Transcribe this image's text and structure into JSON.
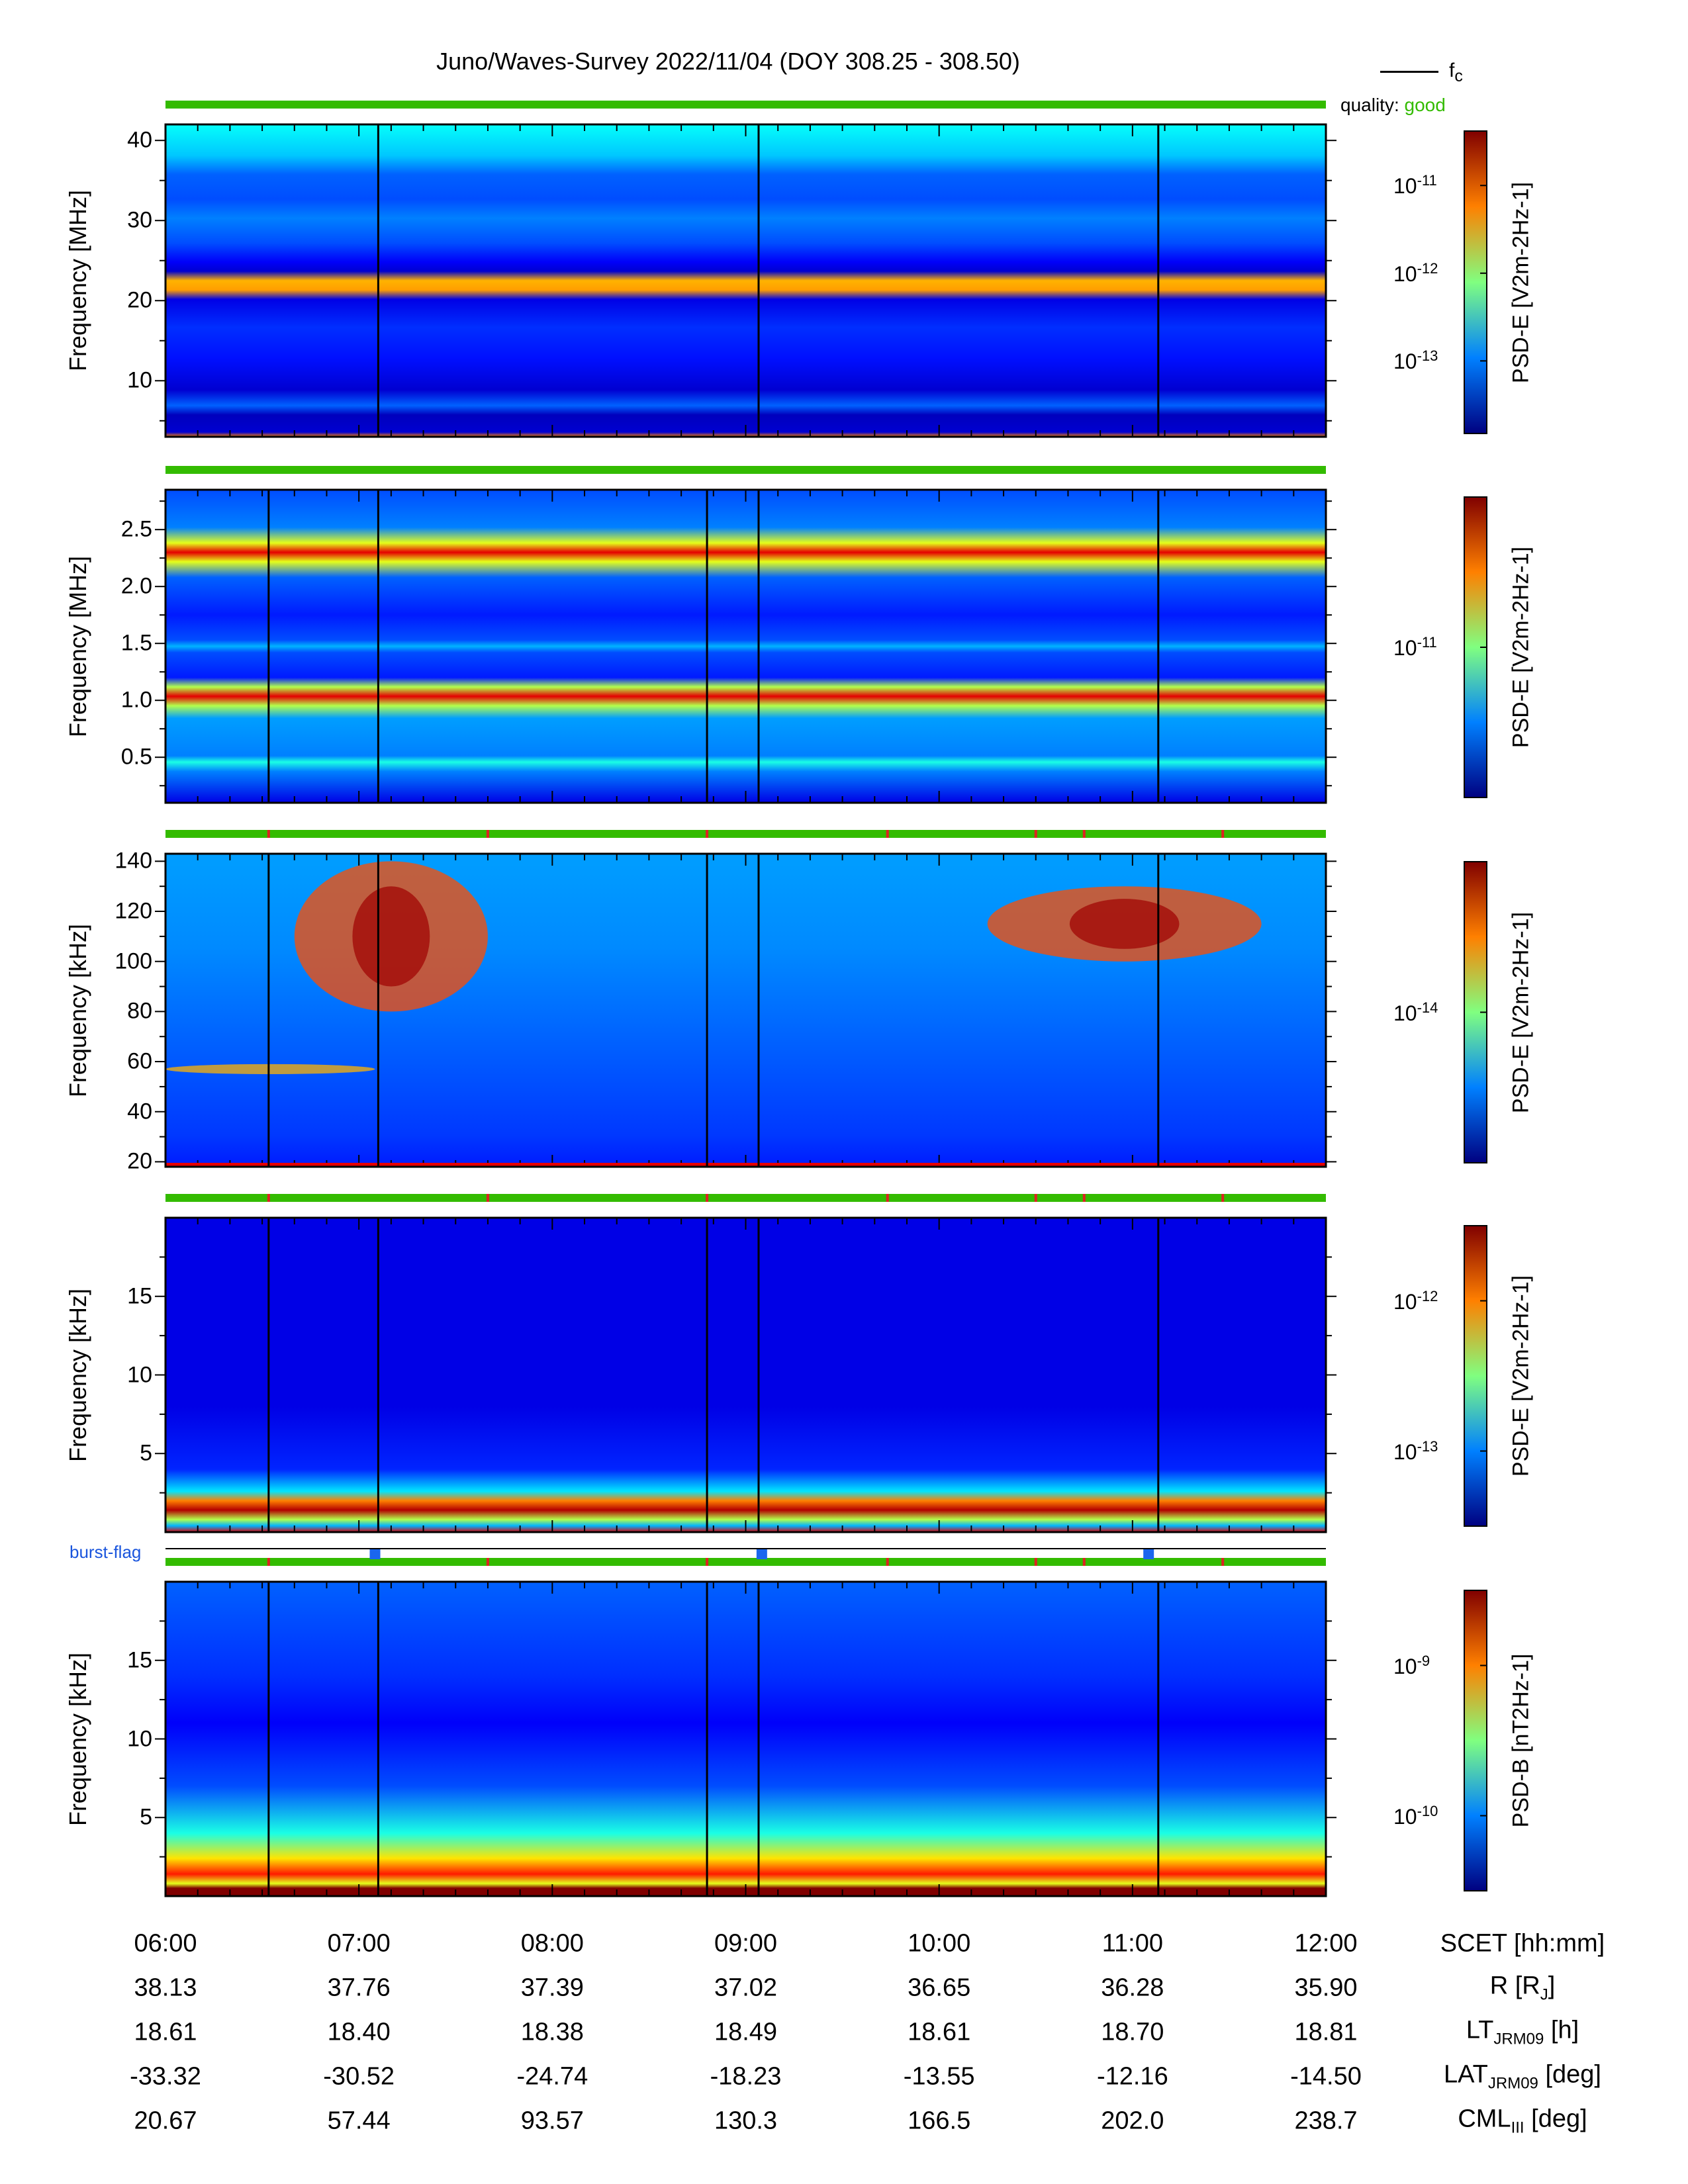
{
  "figure": {
    "title": "Juno/Waves-Survey  2022/11/04 (DOY 308.25 - 308.50)",
    "legend_fc": "f",
    "legend_fc_sub": "c",
    "quality_label": "quality:",
    "quality_value": "good",
    "burst_flag_label": "burst-flag",
    "colors": {
      "quality_good": "#33bb00",
      "quality_gap": "#dd2222",
      "burst": "#1a66ee",
      "event_line": "#000000"
    }
  },
  "chart_data": [
    {
      "type": "heatmap",
      "panel": "HFR-high",
      "ylabel": "Frequency [MHz]",
      "yticks": [
        "40",
        "30",
        "20",
        "10"
      ],
      "ylim": [
        3,
        42
      ],
      "colorbar_label": "PSD-E [V2m-2Hz-1]",
      "colorbar_ticks": [
        "10-11",
        "10-12",
        "10-13"
      ],
      "bands": [
        {
          "freq": 22,
          "level": "high"
        },
        {
          "freq": 31,
          "level": "medium"
        },
        {
          "freq": 27,
          "level": "medium"
        },
        {
          "freq": 9.5,
          "level": "medium"
        },
        {
          "freq": 3.2,
          "level": "high"
        }
      ]
    },
    {
      "type": "heatmap",
      "panel": "HFR-low",
      "ylabel": "Frequency [MHz]",
      "yticks": [
        "2.5",
        "2.0",
        "1.5",
        "1.0",
        "0.5"
      ],
      "ylim": [
        0.1,
        2.85
      ],
      "colorbar_label": "PSD-E [V2m-2Hz-1]",
      "colorbar_ticks": [
        "10-11"
      ],
      "bands": [
        {
          "freq": 2.25,
          "level": "very high"
        },
        {
          "freq": 1.13,
          "level": "very high"
        },
        {
          "freq": 1.42,
          "level": "medium"
        },
        {
          "freq": 0.55,
          "level": "medium"
        }
      ]
    },
    {
      "type": "heatmap",
      "panel": "LFR-high",
      "ylabel": "Frequency [kHz]",
      "yticks": [
        "140",
        "120",
        "100",
        "80",
        "60",
        "40",
        "20"
      ],
      "ylim": [
        18,
        143
      ],
      "colorbar_label": "PSD-E [V2m-2Hz-1]",
      "colorbar_ticks": [
        "10-14"
      ],
      "features": [
        {
          "name": "emission",
          "t_start": "06:40",
          "t_end": "07:40",
          "f_low": 80,
          "f_high": 140
        },
        {
          "name": "emission",
          "t_start": "10:15",
          "t_end": "11:40",
          "f_low": 100,
          "f_high": 130
        },
        {
          "name": "band",
          "t_start": "06:00",
          "t_end": "07:05",
          "f_low": 55,
          "f_high": 59
        }
      ]
    },
    {
      "type": "heatmap",
      "panel": "LFR-low-E",
      "ylabel": "Frequency [kHz]",
      "yticks": [
        "15",
        "10",
        "5"
      ],
      "ylim": [
        0,
        20
      ],
      "colorbar_label": "PSD-E [V2m-2Hz-1]",
      "colorbar_ticks": [
        "10-12",
        "10-13"
      ],
      "features": [
        {
          "name": "low-frequency band",
          "f_low": 0,
          "f_high": 2
        }
      ]
    },
    {
      "type": "heatmap",
      "panel": "LFR-low-B",
      "ylabel": "Frequency [kHz]",
      "yticks": [
        "15",
        "10",
        "5"
      ],
      "ylim": [
        0,
        20
      ],
      "colorbar_label": "PSD-B [nT2Hz-1]",
      "colorbar_ticks": [
        "10-9",
        "10-10"
      ],
      "features": [
        {
          "name": "low-frequency band",
          "f_low": 0,
          "f_high": 3
        }
      ]
    }
  ],
  "event_lines": {
    "panel1": [
      "07:06",
      "09:04",
      "11:08"
    ],
    "others": [
      "06:32",
      "07:06",
      "08:48",
      "09:04",
      "11:08"
    ]
  },
  "quality_gaps": [
    "06:32",
    "07:40",
    "08:48",
    "09:44",
    "10:30",
    "10:45",
    "11:28"
  ],
  "burst_flags": [
    "07:05",
    "09:05",
    "11:05"
  ],
  "ephemeris": {
    "rows": [
      {
        "label": "SCET [hh:mm]",
        "values": [
          "06:00",
          "07:00",
          "08:00",
          "09:00",
          "10:00",
          "11:00",
          "12:00"
        ]
      },
      {
        "label": "R [R",
        "label_sub": "J",
        "label_tail": "]",
        "values": [
          "38.13",
          "37.76",
          "37.39",
          "37.02",
          "36.65",
          "36.28",
          "35.90"
        ]
      },
      {
        "label": "LT",
        "label_sub": "JRM09",
        "label_tail": " [h]",
        "values": [
          "18.61",
          "18.40",
          "18.38",
          "18.49",
          "18.61",
          "18.70",
          "18.81"
        ]
      },
      {
        "label": "LAT",
        "label_sub": "JRM09",
        "label_tail": " [deg]",
        "values": [
          "-33.32",
          "-30.52",
          "-24.74",
          "-18.23",
          "-13.55",
          "-12.16",
          "-14.50"
        ]
      },
      {
        "label": "CML",
        "label_sub": "III",
        "label_tail": " [deg]",
        "values": [
          "20.67",
          "57.44",
          "93.57",
          "130.3",
          "166.5",
          "202.0",
          "238.7"
        ]
      }
    ]
  }
}
